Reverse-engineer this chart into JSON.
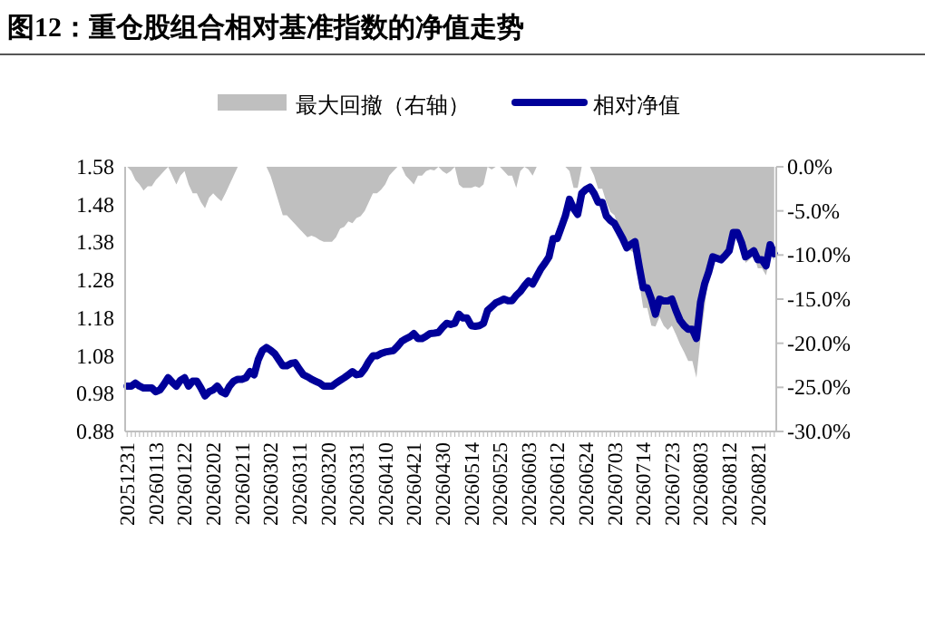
{
  "chart_data": {
    "type": "line",
    "title": "图12：重仓股组合相对基准指数的净值走势",
    "legend": "top",
    "categories": [
      "20251231",
      null,
      null,
      null,
      null,
      null,
      null,
      "20260113",
      null,
      null,
      null,
      null,
      null,
      null,
      "20260122",
      null,
      null,
      null,
      null,
      null,
      null,
      "20260202",
      null,
      null,
      null,
      null,
      null,
      null,
      "20260211",
      null,
      null,
      null,
      null,
      null,
      null,
      "20260302",
      null,
      null,
      null,
      null,
      null,
      null,
      "20260311",
      null,
      null,
      null,
      null,
      null,
      null,
      "20260320",
      null,
      null,
      null,
      null,
      null,
      null,
      "20260331",
      null,
      null,
      null,
      null,
      null,
      null,
      "20260410",
      null,
      null,
      null,
      null,
      null,
      null,
      "20260421",
      null,
      null,
      null,
      null,
      null,
      null,
      "20260430",
      null,
      null,
      null,
      null,
      null,
      null,
      "20260514",
      null,
      null,
      null,
      null,
      null,
      null,
      "20260525",
      null,
      null,
      null,
      null,
      null,
      null,
      "20260603",
      null,
      null,
      null,
      null,
      null,
      null,
      "20260612",
      null,
      null,
      null,
      null,
      null,
      null,
      "20260624",
      null,
      null,
      null,
      null,
      null,
      null,
      "20260703",
      null,
      null,
      null,
      null,
      null,
      null,
      "20260714",
      null,
      null,
      null,
      null,
      null,
      null,
      "20260723",
      null,
      null,
      null,
      null,
      null,
      null,
      "20260803",
      null,
      null,
      null,
      null,
      null,
      null,
      "20260812",
      null,
      null,
      null,
      null,
      null,
      null,
      "20260821",
      null,
      null,
      null,
      null
    ],
    "ylim": [
      0.88,
      1.58
    ],
    "yticks": [
      0.88,
      0.98,
      1.08,
      1.18,
      1.28,
      1.38,
      1.48,
      1.58
    ],
    "y2lim": [
      -30,
      0
    ],
    "y2ticks": [
      {
        "value": -30,
        "label": "-30.0%"
      },
      {
        "value": -25,
        "label": "-25.0%"
      },
      {
        "value": -20,
        "label": "-20.0%"
      },
      {
        "value": -15,
        "label": "-15.0%"
      },
      {
        "value": -10,
        "label": "-10.0%"
      },
      {
        "value": -5,
        "label": "-5.0%"
      },
      {
        "value": 0,
        "label": "0.0%"
      }
    ],
    "series": [
      {
        "name": "最大回撤（右轴）",
        "type": "area",
        "axis": "y2",
        "color": "#bfbfbf",
        "values": [
          0,
          -0.5,
          -1.5,
          -2,
          -2.7,
          -2.2,
          -2.2,
          -1.5,
          -1,
          -0.5,
          0,
          -1,
          -2,
          -1,
          -0.5,
          -2,
          -3,
          -3,
          -4,
          -4.7,
          -3.5,
          -3,
          -3.5,
          -3.9,
          -3,
          -2,
          -1,
          0,
          0,
          0,
          0,
          0,
          0,
          0,
          0,
          -1,
          -2.5,
          -4,
          -5.5,
          -5.5,
          -6,
          -6.5,
          -7,
          -7.5,
          -8,
          -7.8,
          -8,
          -8.3,
          -8.5,
          -8.5,
          -8.5,
          -8,
          -7,
          -6.8,
          -6.2,
          -6.4,
          -5.8,
          -5.6,
          -5,
          -4,
          -3,
          -3,
          -2.6,
          -2,
          -1,
          -0.5,
          0,
          0,
          -1,
          -1.5,
          -2,
          -1,
          -1,
          -0.5,
          -0.3,
          -0.4,
          0,
          -0.5,
          -0.8,
          -0.5,
          0,
          -2,
          -2.4,
          -2.4,
          -2.4,
          -2.2,
          -2.4,
          -2,
          0,
          -0.3,
          0,
          0,
          -0.5,
          -1,
          -1,
          -2.4,
          -0.5,
          0,
          -0.3,
          -1,
          0,
          0,
          0,
          0,
          0,
          0,
          0,
          0,
          -0.5,
          -2.4,
          -2.4,
          0,
          0,
          0,
          -1,
          -2.5,
          -2.5,
          -4,
          -5.1,
          -5.5,
          -7,
          -8.5,
          -9.5,
          -9.5,
          -9.9,
          -13,
          -16,
          -16,
          -18,
          -18.1,
          -17,
          -18,
          -18.5,
          -18,
          -19,
          -20.1,
          -21,
          -22,
          -22,
          -23.9,
          -19.5,
          -16,
          -11.9,
          -10.6,
          -10.8,
          -10.6,
          -9.5,
          -9,
          -8.1,
          -8.1,
          -9,
          -10.9,
          -10.5,
          -10,
          -11.5,
          -11.5,
          -12.3,
          -10,
          -10.6
        ]
      },
      {
        "name": "相对净值",
        "type": "line",
        "color": "#000099",
        "values": [
          1.0,
          1.0,
          1.008,
          1.0,
          0.995,
          0.995,
          0.995,
          0.985,
          0.99,
          1.005,
          1.022,
          1.01,
          1.0,
          1.015,
          1.022,
          1.0,
          1.013,
          1.013,
          0.995,
          0.974,
          0.985,
          0.99,
          1.0,
          0.985,
          0.98,
          1.0,
          1.013,
          1.018,
          1.018,
          1.022,
          1.038,
          1.03,
          1.07,
          1.094,
          1.102,
          1.095,
          1.086,
          1.07,
          1.054,
          1.054,
          1.06,
          1.062,
          1.045,
          1.03,
          1.025,
          1.018,
          1.013,
          1.008,
          1.0,
          1.0,
          1.0,
          1.008,
          1.015,
          1.022,
          1.03,
          1.038,
          1.03,
          1.032,
          1.046,
          1.065,
          1.08,
          1.08,
          1.086,
          1.09,
          1.092,
          1.094,
          1.105,
          1.118,
          1.125,
          1.13,
          1.139,
          1.126,
          1.126,
          1.132,
          1.139,
          1.14,
          1.142,
          1.155,
          1.166,
          1.163,
          1.166,
          1.19,
          1.18,
          1.18,
          1.16,
          1.158,
          1.16,
          1.166,
          1.2,
          1.21,
          1.22,
          1.225,
          1.23,
          1.226,
          1.226,
          1.24,
          1.25,
          1.265,
          1.278,
          1.27,
          1.29,
          1.31,
          1.325,
          1.342,
          1.39,
          1.39,
          1.42,
          1.45,
          1.494,
          1.47,
          1.454,
          1.51,
          1.52,
          1.526,
          1.51,
          1.486,
          1.486,
          1.45,
          1.438,
          1.43,
          1.41,
          1.39,
          1.366,
          1.375,
          1.382,
          1.318,
          1.26,
          1.26,
          1.23,
          1.19,
          1.23,
          1.225,
          1.225,
          1.23,
          1.2,
          1.174,
          1.16,
          1.15,
          1.15,
          1.126,
          1.222,
          1.27,
          1.302,
          1.342,
          1.338,
          1.334,
          1.345,
          1.358,
          1.406,
          1.406,
          1.38,
          1.342,
          1.35,
          1.358,
          1.334,
          1.334,
          1.318,
          1.374,
          1.35
        ]
      }
    ]
  }
}
